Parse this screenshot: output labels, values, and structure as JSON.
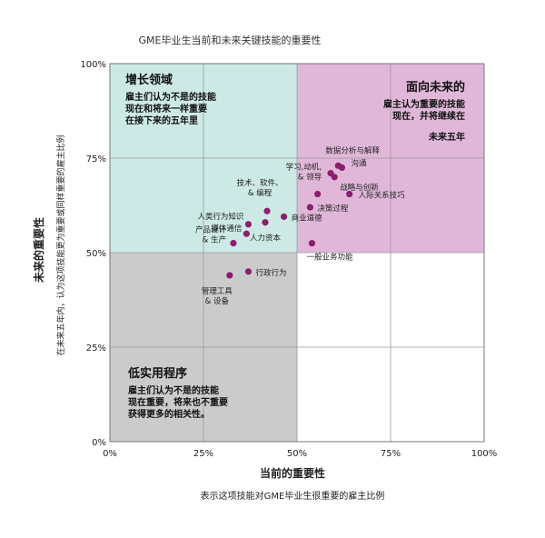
{
  "chart_data": {
    "type": "scatter",
    "title": "GME毕业生当前和未来关键技能的重要性",
    "xlabel": "当前的重要性",
    "xlabel_sub": "表示这项技能对GME毕业生很重要的雇主比例",
    "ylabel": "未来的重要性",
    "ylabel_sub": "在未来五年内，认为这项技能更为重要或同样重要的雇主比例",
    "xlim": [
      0,
      100
    ],
    "ylim": [
      0,
      100
    ],
    "x_ticks": [
      "0%",
      "25%",
      "50%",
      "75%",
      "100%"
    ],
    "y_ticks": [
      "0%",
      "25%",
      "50%",
      "75%",
      "100%"
    ],
    "grid": true,
    "colors": {
      "point": "#8b1f6e",
      "quadrant_top_left": "#cde9e6",
      "quadrant_top_right": "#e0b7d9",
      "quadrant_bottom_left": "#cbcbcb",
      "quadrant_bottom_right": "#ffffff",
      "grid": "#9a9a9a"
    },
    "quadrants": [
      {
        "position": "top-left",
        "title": "增长领域",
        "lines": [
          "雇主们认为不是的技能",
          "现在和将来一样重要",
          "在接下来的五年里"
        ]
      },
      {
        "position": "top-right",
        "title": "面向未来的",
        "lines": [
          "雇主认为重要的技能",
          "现在，并将继续在",
          "未来五年"
        ]
      },
      {
        "position": "bottom-left",
        "title": "低实用程序",
        "lines": [
          "雇主们认为不是的技能",
          "现在重要，将来也不重要",
          "获得更多的相关性。"
        ]
      }
    ],
    "points": [
      {
        "label": "数据分析与解释",
        "x": 61,
        "y": 73
      },
      {
        "label": "沟通",
        "x": 62,
        "y": 72.5
      },
      {
        "label": "学习,动机,& 领导",
        "x": 59,
        "y": 71
      },
      {
        "label": "战略与创新",
        "x": 60,
        "y": 70
      },
      {
        "label": "",
        "x": 55.5,
        "y": 65.5
      },
      {
        "label": "人际关系技巧",
        "x": 64,
        "y": 65.5
      },
      {
        "label": "决策过程",
        "x": 53.5,
        "y": 62
      },
      {
        "label": "技术、软件、& 编程",
        "x": 42,
        "y": 61
      },
      {
        "label": "商业道德",
        "x": 46.5,
        "y": 59.5
      },
      {
        "label": "人类行为知识",
        "x": 37,
        "y": 57.5
      },
      {
        "label": "人力资本",
        "x": 41.5,
        "y": 58
      },
      {
        "label": "媒体通信",
        "x": 36.5,
        "y": 55
      },
      {
        "label": "产品设计& 生产",
        "x": 33,
        "y": 52.5
      },
      {
        "label": "一般业务功能",
        "x": 54,
        "y": 52.5
      },
      {
        "label": "行政行为",
        "x": 37,
        "y": 45
      },
      {
        "label": "管理工具& 设备",
        "x": 32,
        "y": 44
      }
    ]
  }
}
